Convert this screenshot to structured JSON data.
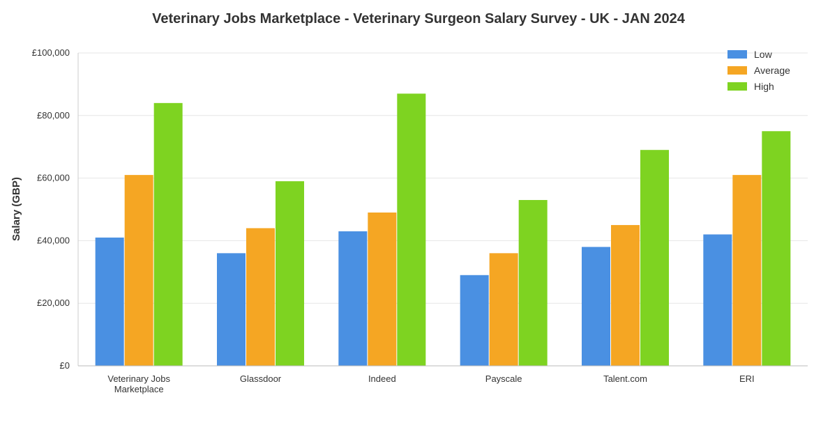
{
  "chart_data": {
    "type": "bar",
    "title": "Veterinary Jobs Marketplace - Veterinary Surgeon Salary Survey - UK - JAN 2024",
    "xlabel": "",
    "ylabel": "Salary (GBP)",
    "ylim": [
      0,
      100000
    ],
    "yticks": [
      0,
      20000,
      40000,
      60000,
      80000,
      100000
    ],
    "ytick_labels": [
      "£0",
      "£20,000",
      "£40,000",
      "£60,000",
      "£80,000",
      "£100,000"
    ],
    "categories": [
      [
        "Veterinary Jobs",
        "Marketplace"
      ],
      [
        "Glassdoor"
      ],
      [
        "Indeed"
      ],
      [
        "Payscale"
      ],
      [
        "Talent.com"
      ],
      [
        "ERI"
      ]
    ],
    "series": [
      {
        "name": "Low",
        "color": "#4a90e2",
        "values": [
          41000,
          36000,
          43000,
          29000,
          38000,
          42000
        ]
      },
      {
        "name": "Average",
        "color": "#f5a623",
        "values": [
          61000,
          44000,
          49000,
          36000,
          45000,
          61000
        ]
      },
      {
        "name": "High",
        "color": "#7ed321",
        "values": [
          84000,
          59000,
          87000,
          53000,
          69000,
          75000
        ]
      }
    ],
    "grid": true,
    "legend_position": "top-right"
  }
}
